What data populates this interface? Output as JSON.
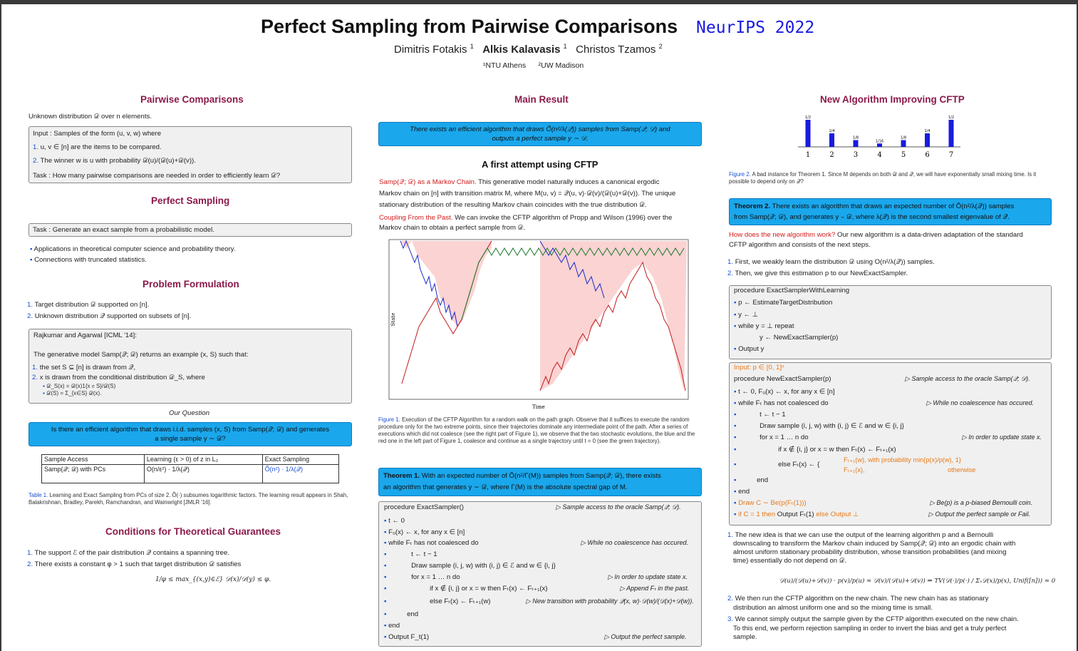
{
  "header": {
    "title": "Perfect Sampling from Pairwise Comparisons",
    "venue": "NeurIPS 2022",
    "author1": "Dimitris Fotakis",
    "author2": "Alkis Kalavasis",
    "author3": "Christos Tzamos",
    "sup1": "1",
    "sup2": "2",
    "affil1": "¹NTU Athens",
    "affil2": "²UW Madison"
  },
  "col1": {
    "pc_title": "Pairwise Comparisons",
    "pc_intro": "Unknown distribution 𝒟 over n elements.",
    "pc_input": "Input : Samples of the form (u, v, w) where",
    "pc_item1": "u, v ∈ [n] are the items to be compared.",
    "pc_item2": "The winner w is u with probability 𝒟(u)/(𝒟(u)+𝒟(v)).",
    "pc_task": "Task : How many pairwise comparisons are needed in order to efficiently learn 𝒟?",
    "ps_title": "Perfect Sampling",
    "ps_task": "Task : Generate an exact sample from a probabilistic model.",
    "ps_b1": "Applications in theoretical computer science and probability theory.",
    "ps_b2": "Connections with truncated statistics.",
    "pf_title": "Problem Formulation",
    "pf_1": "Target distribution 𝒟 supported on [n].",
    "pf_2": "Unknown distribution 𝒬 supported on subsets of [n].",
    "ra_cite": "Rajkumar and Agarwal [ICML '14]:",
    "ra_gen": "The generative model Samp(𝒬; 𝒟) returns an example (x, S) such that:",
    "ra_1": "the set S ⊆ [n] is drawn from 𝒬,",
    "ra_2": "x is drawn from the conditional distribution 𝒟_S, where",
    "ra_2a": "𝒟_S(x) = 𝒟(x)1{x ∈ S}/𝒟(S)",
    "ra_2b": "𝒟(S) = Σ_{x∈S} 𝒟(x).",
    "oq_label": "Our Question",
    "oq_text1": "Is there an efficient algorithm that draws i.i.d. samples (x, S) from Samp(𝒬; 𝒟) and generates",
    "oq_text2": "a single sample y ∼ 𝒟?",
    "table": {
      "headers": [
        "Sample Access",
        "Learning (ε > 0) of z in L₂",
        "Exact Sampling"
      ],
      "row": [
        "Samp(𝒬; 𝒟) with PCs",
        "O(n/ε²) · 1/λ(𝒬)",
        "Õ(n²) · 1/λ(𝒬)"
      ]
    },
    "table_cap_lbl": "Table 1.",
    "table_cap": " Learning and Exact Sampling from PCs of size 2. Õ(·) subsumes logarithmic factors. The learning result appears in Shah, Balakrishnan, Bradley, Parekh, Ramchandran, and Wainwright [JMLR '16].",
    "cond_title": "Conditions for Theoretical Guarantees",
    "cond_1": "The support ℰ of the pair distribution 𝒬 contains a spanning tree.",
    "cond_2": "There exists a constant φ > 1 such that target distribution 𝒟 satisfies",
    "cond_formula": "1/φ ≤ max_{(x,y)∈ℰ} 𝒟(x)/𝒟(y) ≤ φ."
  },
  "col2": {
    "mr_title": "Main Result",
    "mr_text1": "There exists an efficient algorithm that draws Õ(n²/λ(𝒬)) samples from Samp(𝒬; 𝒟) and",
    "mr_text2": "outputs a perfect sample y ∼ 𝒟.",
    "fa_title": "A first attempt using CFTP",
    "fa_p1_red": "Samp(𝒬; 𝒟) as a Markov Chain.",
    "fa_p1a": " This generative model naturally induces a canonical ergodic",
    "fa_p1b": "Markov chain on [n] with transition matrix M, where M(u, v) = 𝒬(u, v)·𝒟(v)/(𝒟(u)+𝒟(v)). The unique",
    "fa_p1c": "stationary distribution of the resulting Markov chain coincides with the true distribution 𝒟.",
    "fa_p2_red": "Coupling From the Past.",
    "fa_p2a": " We can invoke the CFTP algorithm of Propp and Wilson (1996) over the",
    "fa_p2b": "Markov chain to obtain a perfect sample from 𝒟.",
    "plot_ylabel": "State",
    "plot_xlabel": "Time",
    "fig1_lbl": "Figure 1.",
    "fig1_cap": " Execution of the CFTP Algorithm for a random walk on the path graph. Observe that it suffices to execute the random procedure only for the two extreme points, since their trajectories dominate any intermediate point of the path. After a series of executions which did not coalesce (see the right part of Figure 1), we observe that the two stochastic evolutions, the blue and the red one in the left part of Figure 1, coalesce and continue as a single trajectory until t = 0 (see the green trajectory).",
    "thm1_a": "Theorem 1.",
    "thm1_b": " With an expected number of Õ(n²/Γ(M)) samples from Samp(𝒬; 𝒟), there exists",
    "thm1_c": "an algorithm that generates y ∼ 𝒟, where Γ(M) is the absolute spectral gap of M.",
    "alg_proc": "procedure ExactSampler()",
    "alg_proc_c": "▷ Sample access to the oracle Samp(𝒬; 𝒟).",
    "alg_l1": "t ← 0",
    "alg_l2": "F₀(x) ← x, for any x ∈ [n]",
    "alg_l3": "while Fₜ has not coalesced do",
    "alg_l3_c": "▷ While no coalescence has occured.",
    "alg_l4": "t ← t − 1",
    "alg_l5": "Draw sample (i, j, w) with (i, j) ∈ ℰ and w ∈ {i, j}",
    "alg_l6": "for x = 1 … n do",
    "alg_l6_c": "▷ In order to update state x.",
    "alg_l7": "if x ∉ {i, j} or x = w then Fₜ(x) ← Fₜ₊₁(x)",
    "alg_l7_c": "▷ Append Fₜ in the past.",
    "alg_l8": "else Fₜ(x) ← Fₜ₊₁(w)",
    "alg_l8_c": "▷ New transition with probability 𝒬(x, w)·𝒟(w)/(𝒟(x)+𝒟(w)).",
    "alg_l9": "end",
    "alg_l10": "end",
    "alg_l11": "Output F_t(1)",
    "alg_l11_c": "▷ Output the perfect sample."
  },
  "col3": {
    "na_title": "New Algorithm Improving CFTP",
    "bar_chart": {
      "categories": [
        "1",
        "2",
        "3",
        "4",
        "5",
        "6",
        "7"
      ],
      "values": [
        0.5,
        0.25,
        0.125,
        0.0625,
        0.125,
        0.25,
        0.5
      ],
      "labels": [
        "1/2",
        "1/4",
        "1/8",
        "1/16",
        "1/8",
        "1/4",
        "1/2"
      ]
    },
    "fig2_lbl": "Figure 2.",
    "fig2_cap": " A bad instance for Theorem 1. Since M depends on both 𝒟 and 𝒬, we will have exponentially small mixing time. Is it possible to depend only on 𝒬?",
    "thm2_a": "Theorem 2.",
    "thm2_b": " There exists an algorithm that draws an expected number of Õ(n²/λ(𝒬)) samples",
    "thm2_c": "from Samp(𝒬; 𝒟), and generates y ∼ 𝒟, where λ(𝒬) is the second smallest eigenvalue of 𝒬.",
    "how_red": "How does the new algorithm work?",
    "how_a": " Our new algorithm is a data-driven adaptation of the standard",
    "how_b": "CFTP algorithm and consists of the next steps.",
    "step1": "First, we weakly learn the distribution 𝒟 using O(n²/λ(𝒬)) samples.",
    "step2": "Then, we give this estimation p to our NewExactSampler.",
    "a1_proc": "procedure ExactSamplerWithLearning",
    "a1_l1": "p ← EstimateTargetDistribution",
    "a1_l2": "y ← ⊥",
    "a1_l3": "while y = ⊥ repeat",
    "a1_l4": "y ← NewExactSampler(p)",
    "a1_l5": "Output y",
    "a2_input": "Input: p ∈ [0, 1]ⁿ",
    "a2_proc": "procedure NewExactSampler(p)",
    "a2_proc_c": "▷ Sample access to the oracle Samp(𝒬; 𝒟).",
    "a2_l1": "t ← 0, F₀(x) ← x, for any x ∈ [n]",
    "a2_l2": "while Fₜ has not coalesced do",
    "a2_l2_c": "▷ While no coalescence has occured.",
    "a2_l3": "t ← t − 1",
    "a2_l4": "Draw sample (i, j, w) with (i, j) ∈ ℰ and w ∈ {i, j}",
    "a2_l5": "for x = 1 … n do",
    "a2_l5_c": "▷ In order to update state x.",
    "a2_l6": "if x ∉ {i, j} or x = w then Fₜ(x) ← Fₜ₊₁(x)",
    "a2_l7": "else Fₜ(x) ← {",
    "a2_l7a": "Fₜ₊₁(w), with probability min{p(x)/p(w), 1}",
    "a2_l7b": "Fₜ₊₁(x),",
    "a2_l7c": "otherwise",
    "a2_l8": "end",
    "a2_l9": "end",
    "a2_l10": "Draw C ∼ Be(p(Fₜ(1)))",
    "a2_l10_c": "▷ Be(p) is a p-biased Bernoulli coin.",
    "a2_l11a": "if C = 1 then",
    "a2_l11b": "Output Fₜ(1)",
    "a2_l11c": "else Output ⊥",
    "a2_l11_c": "▷ Output the perfect sample or Fail.",
    "n1a": "The new idea is that we can use the output of the learning algorithm p and a Bernoulli",
    "n1b": "downscaling to transform the Markov chain induced by Samp(𝒬; 𝒟) into an ergodic chain with",
    "n1c": "almost uniform stationary probability distribution, whose transition probabilities (and mixing",
    "n1d": "time) essentially do not depend on 𝒟.",
    "n1_formula": "𝒟(u)/(𝒟(u)+𝒟(v)) · p(v)/p(u) ≈ 𝒟(v)/(𝒟(u)+𝒟(v)) ⇒ TV(𝒟(·)/p(·) / Σₓ𝒟(x)/p(x), Unif([n])) ≈ 0",
    "n2a": "We then run the CFTP algorithm on the new chain. The new chain has as stationary",
    "n2b": "distribution an almost uniform one and so the mixing time is small.",
    "n3a": "We cannot simply output the sample given by the CFTP algorithm executed on the new chain.",
    "n3b": "To this end, we perform rejection sampling in order to invert the bias and get a truly perfect",
    "n3c": "sample."
  }
}
